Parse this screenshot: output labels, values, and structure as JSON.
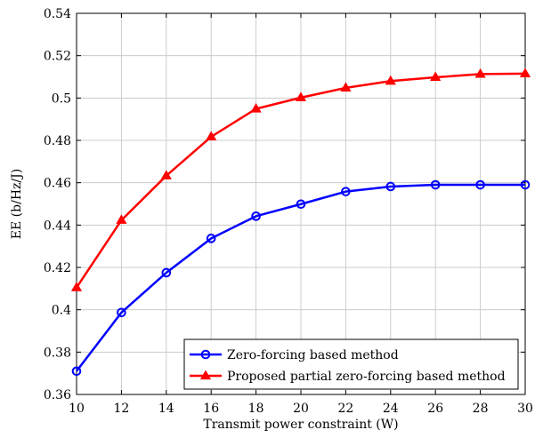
{
  "chart_data": {
    "type": "line",
    "xlabel": "Transmit power constraint (W)",
    "ylabel": "EE (b/Hz/J)",
    "xlim": [
      10,
      30
    ],
    "ylim": [
      0.36,
      0.54
    ],
    "xticks": [
      10,
      12,
      14,
      16,
      18,
      20,
      22,
      24,
      26,
      28,
      30
    ],
    "yticks": [
      0.36,
      0.38,
      0.4,
      0.42,
      0.44,
      0.46,
      0.48,
      0.5,
      0.52,
      0.54
    ],
    "xtick_labels": [
      "10",
      "12",
      "14",
      "16",
      "18",
      "20",
      "22",
      "24",
      "26",
      "28",
      "30"
    ],
    "ytick_labels": [
      "0.36",
      "0.38",
      "0.4",
      "0.42",
      "0.44",
      "0.46",
      "0.48",
      "0.5",
      "0.52",
      "0.54"
    ],
    "grid": true,
    "legend_position": "bottom-right",
    "x": [
      10,
      12,
      14,
      16,
      18,
      20,
      22,
      24,
      26,
      28,
      30
    ],
    "series": [
      {
        "name": "Zero-forcing based method",
        "color": "#0000ff",
        "marker": "circle",
        "values": [
          0.371,
          0.3987,
          0.4175,
          0.4337,
          0.4442,
          0.4499,
          0.4558,
          0.4582,
          0.459,
          0.459,
          0.459
        ]
      },
      {
        "name": "Proposed partial zero-forcing based method",
        "color": "#ff0000",
        "marker": "triangle",
        "values": [
          0.4105,
          0.4423,
          0.4633,
          0.4817,
          0.4949,
          0.5002,
          0.5048,
          0.508,
          0.5098,
          0.5113,
          0.5115
        ]
      }
    ]
  }
}
